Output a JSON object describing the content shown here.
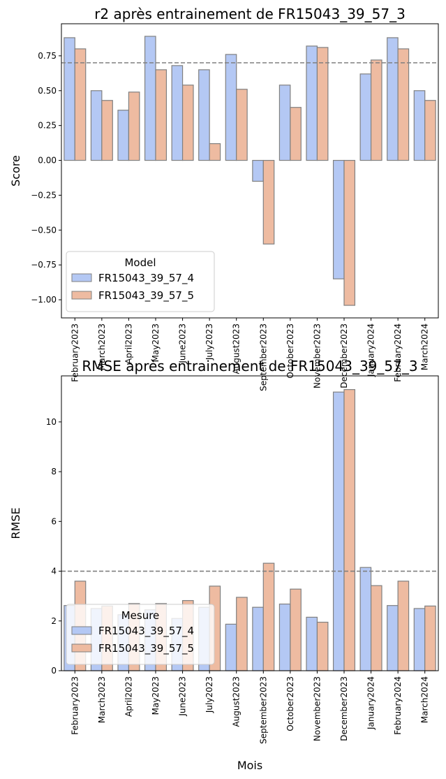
{
  "colors": {
    "series1": "#b4c8f4",
    "series2": "#eebba1",
    "edge": "#808080",
    "reference_line": "#808080"
  },
  "months": [
    "February2023",
    "March2023",
    "April2023",
    "May2023",
    "June2023",
    "July2023",
    "August2023",
    "September2023",
    "October2023",
    "November2023",
    "December2023",
    "January2024",
    "February2024",
    "March2024"
  ],
  "chart_data": [
    {
      "type": "bar",
      "title": "r2 après entrainement de FR15043_39_57_3",
      "xlabel": "",
      "ylabel": "Score",
      "ylim": [
        -1.13,
        0.98
      ],
      "yticks": [
        -1.0,
        -0.75,
        -0.5,
        -0.25,
        0.0,
        0.25,
        0.5,
        0.75
      ],
      "ytick_labels": [
        "−1.00",
        "−0.75",
        "−0.50",
        "−0.25",
        "0.00",
        "0.25",
        "0.50",
        "0.75"
      ],
      "reference_line": 0.7,
      "grid": false,
      "legend_title": "Model",
      "legend_placement": "bottom-left",
      "series": [
        {
          "name": "FR15043_39_57_4",
          "values": [
            0.88,
            0.5,
            0.36,
            0.89,
            0.68,
            0.65,
            0.76,
            -0.15,
            0.54,
            0.82,
            -0.85,
            0.62,
            0.88,
            0.5
          ]
        },
        {
          "name": "FR15043_39_57_5",
          "values": [
            0.8,
            0.43,
            0.49,
            0.65,
            0.54,
            0.12,
            0.51,
            -0.6,
            0.38,
            0.81,
            -1.04,
            0.72,
            0.8,
            0.43
          ]
        }
      ]
    },
    {
      "type": "bar",
      "title": "RMSE après entrainement de FR15043_39_57_3",
      "xlabel": "Mois",
      "ylabel": "RMSE",
      "ylim": [
        0,
        11.85
      ],
      "yticks": [
        0,
        2,
        4,
        6,
        8,
        10
      ],
      "ytick_labels": [
        "0",
        "2",
        "4",
        "6",
        "8",
        "10"
      ],
      "reference_line": 4.0,
      "grid": false,
      "legend_title": "Mesure",
      "legend_placement": "bottom-left",
      "series": [
        {
          "name": "FR15043_39_57_4",
          "values": [
            2.62,
            2.5,
            2.25,
            2.45,
            2.1,
            2.55,
            1.87,
            2.55,
            2.68,
            2.15,
            11.2,
            4.15,
            2.62,
            2.5
          ]
        },
        {
          "name": "FR15043_39_57_5",
          "values": [
            3.6,
            2.6,
            2.7,
            2.7,
            2.82,
            3.4,
            2.95,
            4.32,
            3.28,
            1.95,
            11.3,
            3.42,
            3.6,
            2.6
          ]
        }
      ]
    }
  ]
}
